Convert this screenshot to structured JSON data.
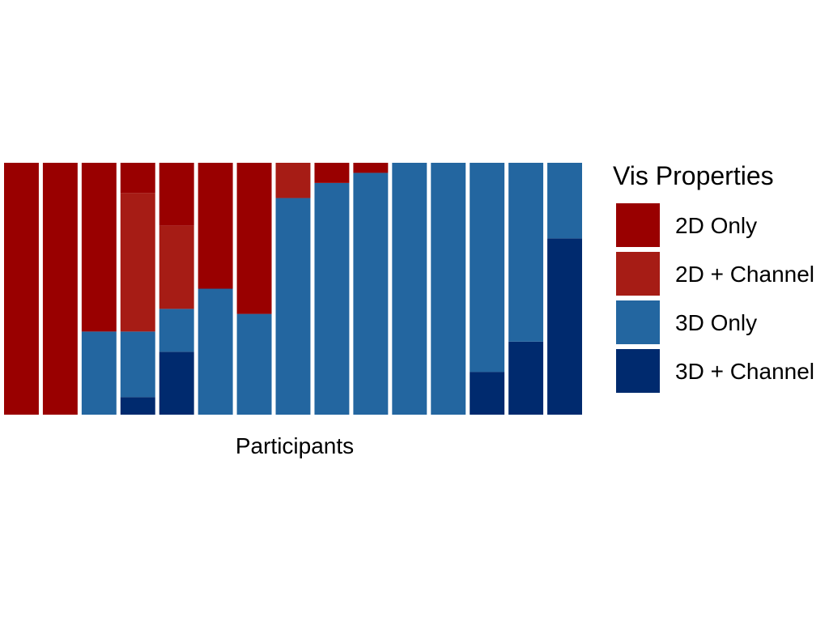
{
  "chart_data": {
    "type": "bar",
    "stacked": true,
    "normalized": true,
    "xlabel": "Participants",
    "ylabel": "",
    "ylim": [
      0,
      1
    ],
    "grid": false,
    "legend_position": "right",
    "legend_title": "Vis Properties",
    "participant_count": 15,
    "series": [
      {
        "name": "2D Only",
        "color": "#990000",
        "values": [
          1.0,
          1.0,
          0.67,
          0.12,
          0.25,
          0.5,
          0.6,
          0.0,
          0.08,
          0.04,
          0.0,
          0.0,
          0.0,
          0.0,
          0.0
        ]
      },
      {
        "name": "2D + Channel",
        "color": "#A61C15",
        "values": [
          0.0,
          0.0,
          0.0,
          0.55,
          0.33,
          0.0,
          0.0,
          0.14,
          0.0,
          0.0,
          0.0,
          0.0,
          0.0,
          0.0,
          0.0
        ]
      },
      {
        "name": "3D Only",
        "color": "#2366A0",
        "values": [
          0.0,
          0.0,
          0.33,
          0.26,
          0.17,
          0.5,
          0.4,
          0.86,
          0.92,
          0.96,
          1.0,
          1.0,
          0.83,
          0.71,
          0.3
        ]
      },
      {
        "name": "3D + Channel",
        "color": "#002A6E",
        "values": [
          0.0,
          0.0,
          0.0,
          0.07,
          0.25,
          0.0,
          0.0,
          0.0,
          0.0,
          0.0,
          0.0,
          0.0,
          0.17,
          0.29,
          0.7
        ]
      }
    ]
  }
}
